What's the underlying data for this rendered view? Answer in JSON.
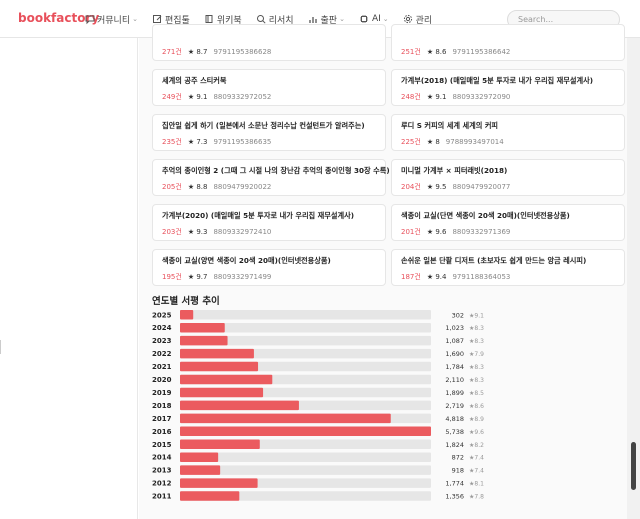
{
  "brand": "bookfactory",
  "nav": [
    {
      "label": "커뮤니티",
      "icon": "chat-icon",
      "dropdown": true
    },
    {
      "label": "편집툴",
      "icon": "edit-icon",
      "dropdown": false
    },
    {
      "label": "위키북",
      "icon": "book-icon",
      "dropdown": false
    },
    {
      "label": "리서치",
      "icon": "search-icon",
      "dropdown": false
    },
    {
      "label": "출판",
      "icon": "chart-icon",
      "dropdown": true
    },
    {
      "label": "AI",
      "icon": "ai-chip-icon",
      "dropdown": true
    },
    {
      "label": "관리",
      "icon": "gear-icon",
      "dropdown": false
    }
  ],
  "search": {
    "placeholder": "Search..."
  },
  "books": [
    {
      "title": "",
      "count": "271건",
      "rating": "★ 8.7",
      "isbn": "9791195386628"
    },
    {
      "title": "",
      "count": "251건",
      "rating": "★ 8.6",
      "isbn": "9791195386642"
    },
    {
      "title": "세계의 공주 스티커북",
      "count": "249건",
      "rating": "★ 9.1",
      "isbn": "8809332972052"
    },
    {
      "title": "가계부(2018) (매일매일 5분 투자로 내가 우리집 재무설계사)",
      "count": "248건",
      "rating": "★ 9.1",
      "isbn": "8809332972090"
    },
    {
      "title": "집안일 쉽게 하기 (일본에서 소문난 정리수납 컨설턴트가 알려주는)",
      "count": "235건",
      "rating": "★ 7.3",
      "isbn": "9791195386635"
    },
    {
      "title": "루디 S 커피의 세계 세계의 커피",
      "count": "225건",
      "rating": "★ 8",
      "isbn": "9788993497014"
    },
    {
      "title": "추억의 종이인형 2 (그때 그 시절 나의 장난감 추억의 종이인형 30장 수록)",
      "count": "205건",
      "rating": "★ 8.8",
      "isbn": "8809479920022"
    },
    {
      "title": "미니멀 가계부 × 피터래빗(2018)",
      "count": "204건",
      "rating": "★ 9.5",
      "isbn": "8809479920077"
    },
    {
      "title": "가계부(2020) (매일매일 5분 투자로 내가 우리집 재무설계사)",
      "count": "203건",
      "rating": "★ 9.3",
      "isbn": "8809332972410"
    },
    {
      "title": "색종이 교실(단면 색종이 20색 20매)(인터넷전용상품)",
      "count": "201건",
      "rating": "★ 9.6",
      "isbn": "8809332971369"
    },
    {
      "title": "색종이 교실(양면 색종이 20색 20매)(인터넷전용상품)",
      "count": "195건",
      "rating": "★ 9.7",
      "isbn": "8809332971499"
    },
    {
      "title": "손쉬운 일본 단팥 디저트 (초보자도 쉽게 만드는 앙금 레시피)",
      "count": "187건",
      "rating": "★ 9.4",
      "isbn": "9791188364053"
    }
  ],
  "section": {
    "title": "연도별 서평 추이"
  },
  "colors": {
    "bar": "#eb5b5f",
    "track": "#e6e6e6",
    "brand": "#e8505b"
  },
  "chart_data": {
    "type": "bar",
    "orientation": "horizontal",
    "categories": [
      "2025",
      "2024",
      "2023",
      "2022",
      "2021",
      "2020",
      "2019",
      "2018",
      "2017",
      "2016",
      "2015",
      "2014",
      "2013",
      "2012",
      "2011"
    ],
    "values": [
      302,
      1023,
      1087,
      1690,
      1784,
      2110,
      1899,
      2719,
      4818,
      5738,
      1824,
      872,
      918,
      1774,
      1356
    ],
    "value_labels": [
      "302",
      "1,023",
      "1,087",
      "1,690",
      "1,784",
      "2,110",
      "1,899",
      "2,719",
      "4,818",
      "5,738",
      "1,824",
      "872",
      "918",
      "1,774",
      "1,356"
    ],
    "ratings": [
      "★9.1",
      "★8.3",
      "★8.3",
      "★7.9",
      "★8.3",
      "★8.3",
      "★8.5",
      "★8.6",
      "★8.9",
      "★9.6",
      "★8.2",
      "★7.4",
      "★7.4",
      "★8.1",
      "★7.8"
    ],
    "xlim": [
      0,
      5738
    ]
  }
}
